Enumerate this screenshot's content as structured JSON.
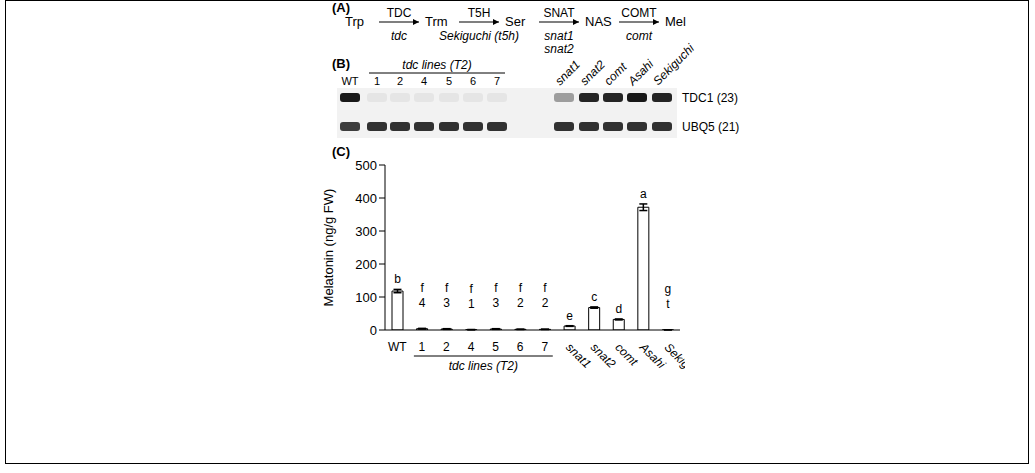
{
  "panel_a": {
    "label": "(A)",
    "steps": [
      {
        "from": "Trp",
        "enzyme": "TDC",
        "genes": [
          "tdc"
        ],
        "to": "Trm"
      },
      {
        "from": "Trm",
        "enzyme": "T5H",
        "genes": [
          "Sekiguchi (t5h)"
        ],
        "to": "Ser"
      },
      {
        "from": "Ser",
        "enzyme": "SNAT",
        "genes": [
          "snat1",
          "snat2"
        ],
        "to": "NAS"
      },
      {
        "from": "NAS",
        "enzyme": "COMT",
        "genes": [
          "comt"
        ],
        "to": "Mel"
      }
    ]
  },
  "panel_b": {
    "label": "(B)",
    "group_label": "tdc lines (T2)",
    "group_members": [
      "1",
      "2",
      "4",
      "5",
      "6",
      "7"
    ],
    "lanes": [
      "WT",
      "1",
      "2",
      "4",
      "5",
      "6",
      "7",
      "snat1",
      "snat2",
      "comt",
      "Asahi",
      "Sekiguchi"
    ],
    "rows": [
      {
        "label": "TDC1 (23)",
        "bands": [
          0.9,
          0.05,
          0.05,
          0.05,
          0.05,
          0.05,
          0.05,
          0.35,
          0.85,
          0.85,
          0.9,
          0.85
        ]
      },
      {
        "label": "UBQ5 (21)",
        "bands": [
          0.75,
          0.8,
          0.8,
          0.8,
          0.8,
          0.8,
          0.8,
          0.8,
          0.8,
          0.8,
          0.8,
          0.8
        ]
      }
    ]
  },
  "chart_data": {
    "type": "bar",
    "panel_label": "(C)",
    "y_label": "Melatonin (ng/g FW)",
    "categories": [
      "WT",
      "1",
      "2",
      "4",
      "5",
      "6",
      "7",
      "snat1",
      "snat2",
      "comt",
      "Asahi",
      "Sekiguchi"
    ],
    "values": [
      118,
      4,
      3,
      1,
      3,
      2,
      2,
      12,
      68,
      32,
      372,
      0.5
    ],
    "errors": [
      5,
      1,
      1,
      0.5,
      1,
      0.5,
      0.5,
      1,
      2,
      1.5,
      10,
      0.2
    ],
    "letters": [
      "b",
      "f",
      "f",
      "f",
      "f",
      "f",
      "f",
      "e",
      "c",
      "d",
      "a",
      "g"
    ],
    "notes": [
      null,
      "4",
      "3",
      "1",
      "3",
      "2",
      "2",
      null,
      null,
      null,
      null,
      "t"
    ],
    "group_label": "tdc lines (T2)",
    "group_members": [
      "1",
      "2",
      "4",
      "5",
      "6",
      "7"
    ],
    "color": "#ffffff",
    "ylim": [
      0,
      500
    ],
    "yticks": [
      0,
      100,
      200,
      300,
      400,
      500
    ]
  }
}
